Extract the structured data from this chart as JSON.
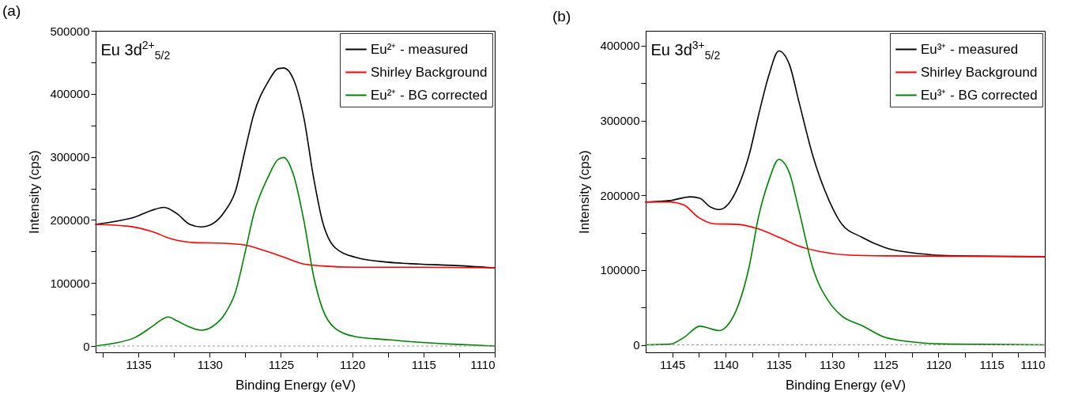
{
  "chart_data": [
    {
      "type": "line",
      "title": "(a)",
      "xlabel": "Binding Energy (eV)",
      "ylabel": "Intensity (cps)",
      "annotations": [
        "Eu 3d$^{2+}$$_{5/2}$"
      ],
      "legend": "top right",
      "xlim": [
        1138,
        1110
      ],
      "ylim": [
        -10000,
        500000
      ],
      "xticks": [
        {
          "value": 1137.5,
          "label": null
        },
        1135,
        {
          "value": 1132.5,
          "label": null
        },
        1130,
        {
          "value": 1127.5,
          "label": null
        },
        1125,
        {
          "value": 1122.5,
          "label": null
        },
        1120,
        {
          "value": 1117.5,
          "label": null
        },
        1115,
        {
          "value": 1112.5,
          "label": null
        },
        1110
      ],
      "yticks": [
        0,
        {
          "value": 50000,
          "label": null
        },
        100000,
        {
          "value": 150000,
          "label": null
        },
        200000,
        {
          "value": 250000,
          "label": null
        },
        300000,
        {
          "value": 350000,
          "label": null
        },
        400000,
        {
          "value": 450000,
          "label": null
        },
        500000
      ],
      "ref_lines": [
        {
          "axis": "y",
          "value": 0,
          "color": "#999999",
          "line_style": "dashed"
        }
      ],
      "series": [
        {
          "name": "Eu²⁺ - measured",
          "color": "#000000",
          "x": [
            1138,
            1136.8,
            1135.2,
            1134.1,
            1133.2,
            1132.3,
            1131.4,
            1130.6,
            1129.8,
            1128.9,
            1128.2,
            1127.5,
            1126.9,
            1125.9,
            1125.2,
            1124.8,
            1124.1,
            1123.4,
            1122.7,
            1122.1,
            1121.2,
            1119.8,
            1117.5,
            1115.3,
            1113,
            1110
          ],
          "values": [
            193000,
            197000,
            205000,
            215000,
            220000,
            210000,
            193000,
            189000,
            194000,
            215000,
            245000,
            312000,
            368000,
            419000,
            440000,
            441000,
            422000,
            363000,
            266000,
            199000,
            156000,
            141000,
            133000,
            130000,
            128000,
            124000
          ]
        },
        {
          "name": "Shirley Background",
          "color": "#ff0000",
          "x": [
            1138,
            1135.7,
            1134.1,
            1132.7,
            1131.1,
            1128.9,
            1127.5,
            1126.1,
            1124.8,
            1123.4,
            1122.1,
            1119.8,
            1115.3,
            1110
          ],
          "values": [
            193000,
            190000,
            182000,
            170000,
            164000,
            163000,
            160000,
            151000,
            141000,
            130000,
            127000,
            125000,
            125000,
            124000
          ]
        },
        {
          "name": "Eu²⁺ - BG corrected",
          "color": "#008000",
          "x": [
            1138,
            1136.8,
            1135.2,
            1134.1,
            1133.2,
            1132.9,
            1132.3,
            1131.4,
            1130.6,
            1129.8,
            1128.9,
            1128.2,
            1127.5,
            1126.9,
            1125.9,
            1125.2,
            1124.8,
            1124.1,
            1123.4,
            1122.7,
            1122.1,
            1121.2,
            1119.8,
            1117.5,
            1115.3,
            1113,
            1110
          ],
          "values": [
            0,
            4000,
            14000,
            30000,
            44000,
            46000,
            40000,
            30000,
            25000,
            31000,
            52000,
            85000,
            150000,
            210000,
            268000,
            296000,
            299000,
            270000,
            200000,
            110000,
            60000,
            28000,
            15000,
            10000,
            6000,
            3000,
            0
          ]
        }
      ]
    },
    {
      "type": "line",
      "title": "(b)",
      "xlabel": "Binding Energy (eV)",
      "ylabel": "Intensity (cps)",
      "annotations": [
        "Eu 3d$^{3+}$$_{5/2}$"
      ],
      "legend": "top right",
      "xlim": [
        1147.5,
        1110
      ],
      "ylim": [
        -10000,
        420000
      ],
      "xticks": [
        1145,
        {
          "value": 1142.5,
          "label": null
        },
        1140,
        {
          "value": 1137.5,
          "label": null
        },
        1135,
        {
          "value": 1132.5,
          "label": null
        },
        1130,
        {
          "value": 1127.5,
          "label": null
        },
        1125,
        {
          "value": 1122.5,
          "label": null
        },
        1120,
        {
          "value": 1117.5,
          "label": null
        },
        1115,
        {
          "value": 1112.5,
          "label": null
        },
        1110
      ],
      "yticks": [
        0,
        {
          "value": 50000,
          "label": null
        },
        100000,
        {
          "value": 150000,
          "label": null
        },
        200000,
        {
          "value": 250000,
          "label": null
        },
        300000,
        {
          "value": 350000,
          "label": null
        },
        400000
      ],
      "ref_lines": [
        {
          "axis": "y",
          "value": 0,
          "color": "#999999",
          "line_style": "dashed"
        }
      ],
      "series": [
        {
          "name": "Eu³⁺ - measured",
          "color": "#000000",
          "x": [
            1147.5,
            1145.2,
            1143.3,
            1142.4,
            1141.5,
            1140.6,
            1139.7,
            1138.8,
            1137.8,
            1136.9,
            1135.9,
            1135,
            1134,
            1133.1,
            1131.8,
            1130.3,
            1129.1,
            1127.2,
            1125,
            1121.8,
            1118.7,
            1110
          ],
          "values": [
            191000,
            193000,
            198000,
            196000,
            185000,
            181000,
            189000,
            212000,
            253000,
            307000,
            362000,
            393000,
            375000,
            325000,
            253000,
            194000,
            162000,
            144000,
            130000,
            122000,
            119000,
            118000
          ]
        },
        {
          "name": "Shirley Background",
          "color": "#ff0000",
          "x": [
            1147.5,
            1145.2,
            1143.9,
            1142.6,
            1141.1,
            1138.8,
            1136.9,
            1135,
            1133.1,
            1131.2,
            1128.3,
            1125,
            1110
          ],
          "values": [
            191000,
            191000,
            187000,
            171000,
            162000,
            161000,
            155000,
            144000,
            132000,
            125000,
            120000,
            119000,
            118000
          ]
        },
        {
          "name": "Eu³⁺ - BG corrected",
          "color": "#008000",
          "x": [
            1147.5,
            1145.2,
            1143.9,
            1142.4,
            1141.5,
            1140.6,
            1139.7,
            1138.8,
            1137.8,
            1136.9,
            1135.9,
            1135,
            1134,
            1133.1,
            1131.8,
            1130.3,
            1129.1,
            1127.2,
            1125,
            1121.8,
            1118.7,
            1110
          ],
          "values": [
            0,
            1000,
            10000,
            25000,
            22000,
            19000,
            28000,
            53000,
            103000,
            171000,
            221000,
            248000,
            230000,
            180000,
            103000,
            58000,
            39000,
            26000,
            10000,
            3000,
            1000,
            0
          ]
        }
      ]
    }
  ]
}
